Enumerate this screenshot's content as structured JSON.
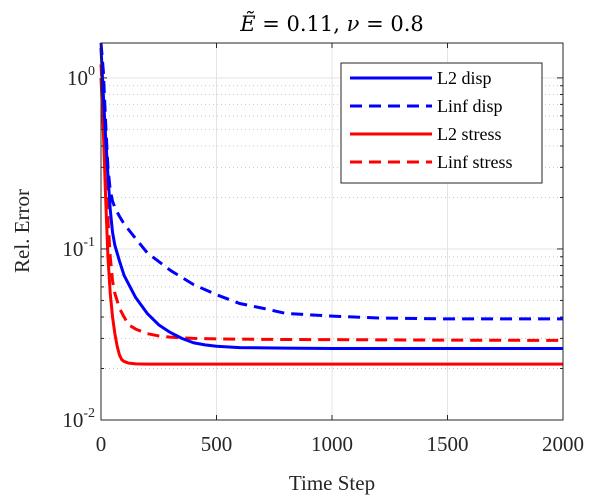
{
  "chart_data": {
    "type": "line",
    "title_parts": {
      "e_symbol": "Ẽ",
      "e_value": " = 0.11, ",
      "nu_symbol": "ν",
      "nu_value": " = 0.8"
    },
    "xlabel": "Time Step",
    "ylabel": "Rel. Error",
    "xlim": [
      0,
      2000
    ],
    "ylim": [
      0.01,
      1.6
    ],
    "yscale": "log",
    "grid": true,
    "legend_position": "top-right",
    "x_ticks": [
      {
        "value": 0,
        "label": "0"
      },
      {
        "value": 500,
        "label": "500"
      },
      {
        "value": 1000,
        "label": "1000"
      },
      {
        "value": 1500,
        "label": "1500"
      },
      {
        "value": 2000,
        "label": "2000"
      }
    ],
    "y_ticks": [
      {
        "value": 0.01,
        "base": "10",
        "exp": "-2"
      },
      {
        "value": 0.1,
        "base": "10",
        "exp": "-1"
      },
      {
        "value": 1,
        "base": "10",
        "exp": "0"
      }
    ],
    "series": [
      {
        "name": "L2 disp",
        "color": "#0000ff",
        "dash": "solid",
        "x": [
          0,
          10,
          20,
          30,
          40,
          50,
          60,
          80,
          100,
          150,
          200,
          250,
          300,
          350,
          400,
          450,
          500,
          600,
          800,
          1000,
          1500,
          2000
        ],
        "y": [
          1.5,
          0.8,
          0.45,
          0.27,
          0.17,
          0.125,
          0.105,
          0.085,
          0.07,
          0.052,
          0.042,
          0.036,
          0.0325,
          0.03,
          0.0283,
          0.0275,
          0.027,
          0.0265,
          0.0263,
          0.0262,
          0.0262,
          0.0262
        ]
      },
      {
        "name": "Linf disp",
        "color": "#0000ff",
        "dash": "dashed",
        "x": [
          0,
          10,
          20,
          30,
          40,
          50,
          60,
          80,
          100,
          150,
          200,
          300,
          400,
          500,
          600,
          700,
          800,
          1000,
          1200,
          1500,
          2000
        ],
        "y": [
          1.6,
          1.1,
          0.55,
          0.3,
          0.22,
          0.19,
          0.175,
          0.155,
          0.14,
          0.115,
          0.095,
          0.075,
          0.062,
          0.054,
          0.048,
          0.045,
          0.042,
          0.0405,
          0.0395,
          0.039,
          0.039
        ]
      },
      {
        "name": "L2 stress",
        "color": "#ff0000",
        "dash": "solid",
        "x": [
          0,
          10,
          20,
          30,
          40,
          50,
          60,
          70,
          80,
          90,
          100,
          120,
          150,
          200,
          300,
          500,
          1000,
          2000
        ],
        "y": [
          1.0,
          0.5,
          0.2,
          0.09,
          0.055,
          0.04,
          0.032,
          0.027,
          0.024,
          0.0225,
          0.022,
          0.0215,
          0.0213,
          0.0212,
          0.0212,
          0.0212,
          0.0212,
          0.0212
        ]
      },
      {
        "name": "Linf stress",
        "color": "#ff0000",
        "dash": "dashed",
        "x": [
          0,
          10,
          20,
          30,
          40,
          50,
          60,
          80,
          100,
          120,
          150,
          200,
          250,
          300,
          400,
          500,
          700,
          1000,
          1500,
          2000
        ],
        "y": [
          1.2,
          0.65,
          0.3,
          0.15,
          0.09,
          0.065,
          0.055,
          0.045,
          0.04,
          0.036,
          0.034,
          0.032,
          0.031,
          0.0305,
          0.03,
          0.0298,
          0.0296,
          0.0295,
          0.0293,
          0.0292
        ]
      }
    ]
  }
}
